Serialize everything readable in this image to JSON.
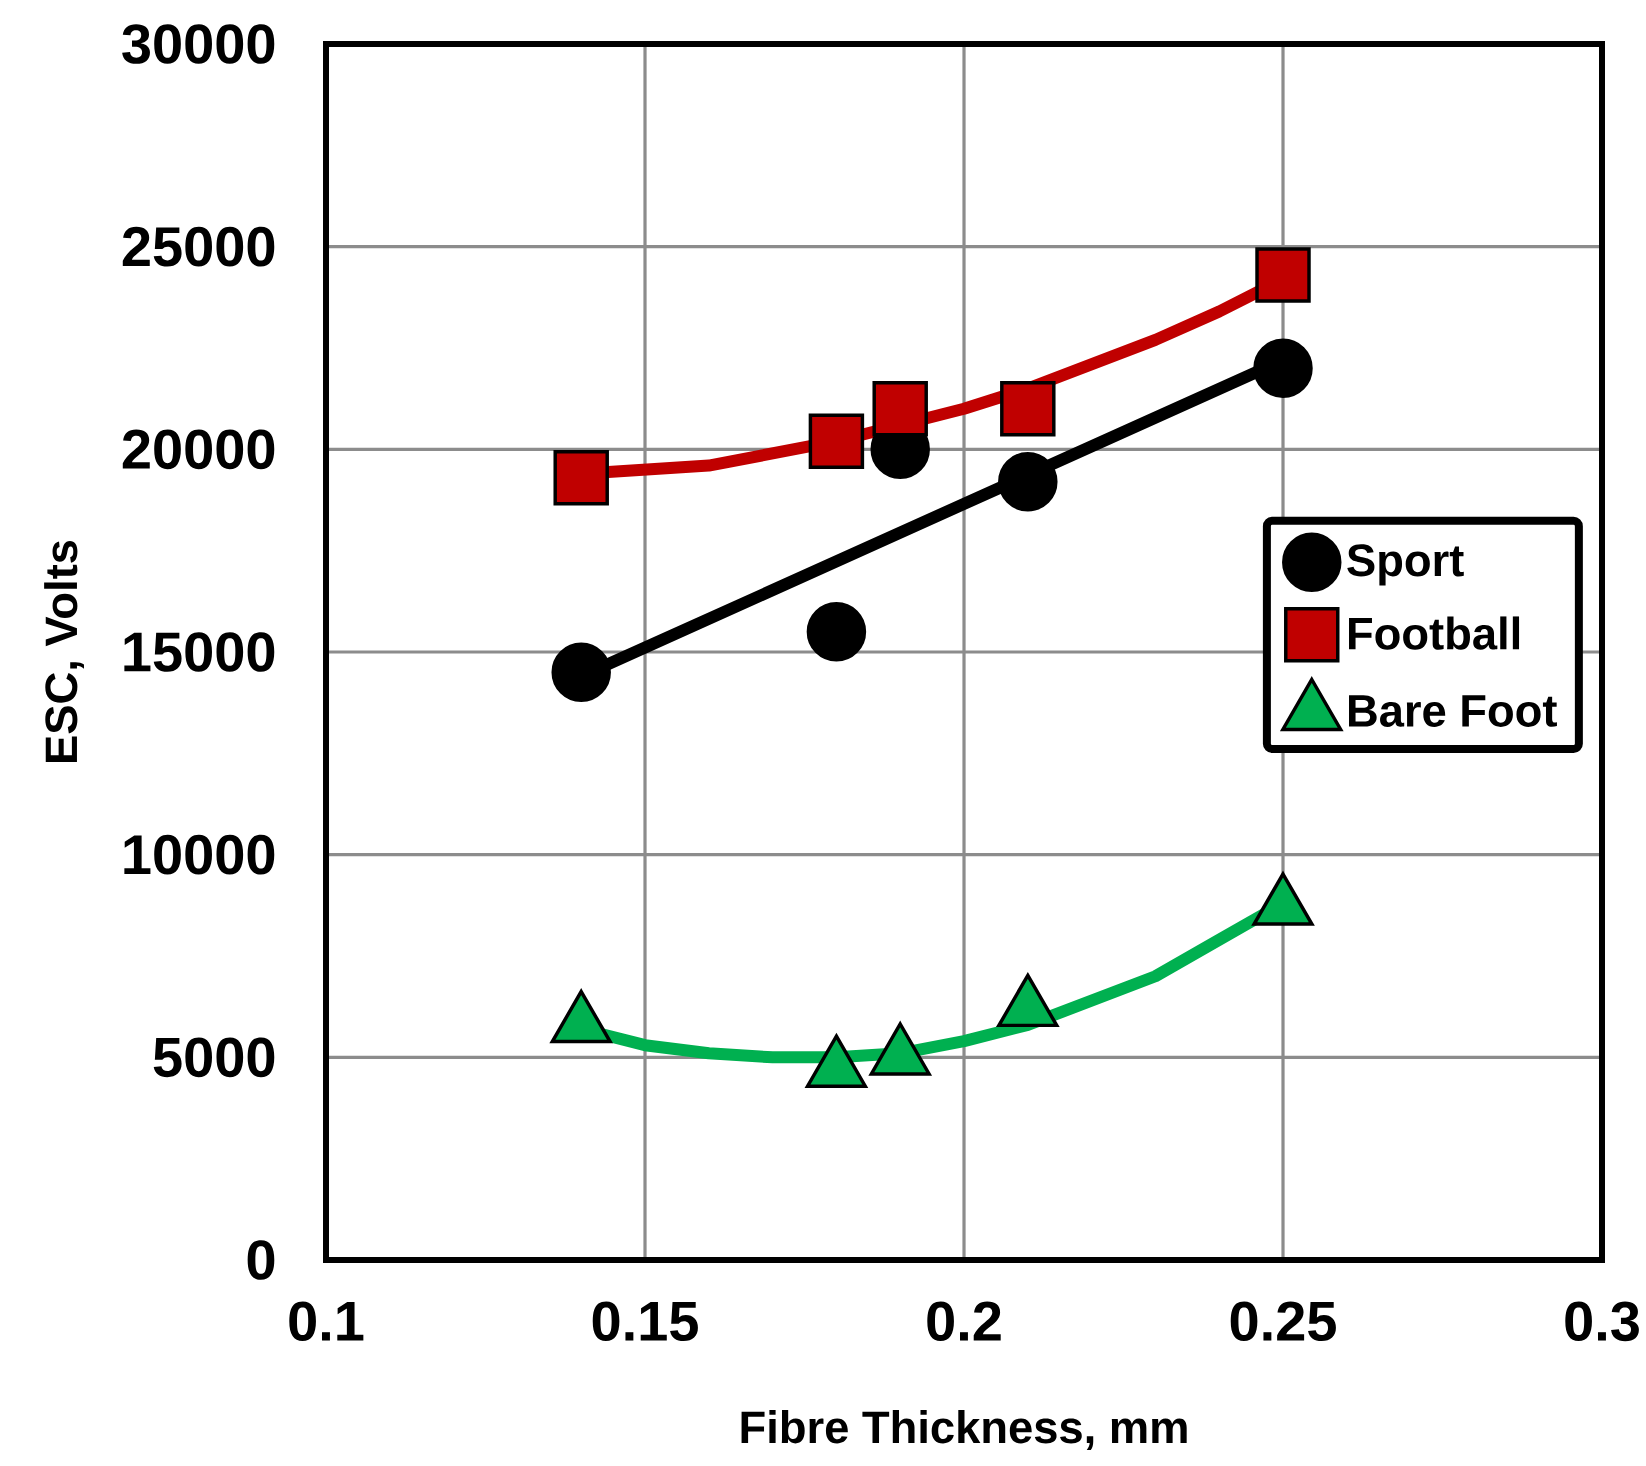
{
  "chart_data": {
    "type": "scatter",
    "xlabel": "Fibre Thickness, mm",
    "ylabel": "ESC, Volts",
    "xlim": [
      0.1,
      0.3
    ],
    "ylim": [
      0,
      30000
    ],
    "xticks": [
      0.1,
      0.15,
      0.2,
      0.25,
      0.3
    ],
    "yticks": [
      0,
      5000,
      10000,
      15000,
      20000,
      25000,
      30000
    ],
    "grid": true,
    "legend": "right",
    "series": [
      {
        "name": "Sport",
        "color": "#000000",
        "marker": "circle",
        "x": [
          0.14,
          0.18,
          0.19,
          0.21,
          0.25
        ],
        "values": [
          14500,
          15500,
          20000,
          19200,
          22000
        ]
      },
      {
        "name": "Football",
        "color": "#c00000",
        "marker": "square",
        "x": [
          0.14,
          0.18,
          0.19,
          0.21,
          0.25
        ],
        "values": [
          19300,
          20200,
          21000,
          21000,
          24300
        ]
      },
      {
        "name": "Bare Foot",
        "color": "#00b050",
        "marker": "triangle",
        "x": [
          0.14,
          0.18,
          0.19,
          0.21,
          0.25
        ],
        "values": [
          5800,
          4700,
          5000,
          6200,
          8700
        ]
      },
      {
        "type": "line",
        "color": "#000000",
        "x": [
          0.14,
          0.25
        ],
        "values": [
          14400,
          22200
        ]
      },
      {
        "type": "line",
        "color": "#c00000",
        "x": [
          0.14,
          0.15,
          0.16,
          0.17,
          0.18,
          0.19,
          0.2,
          0.21,
          0.22,
          0.23,
          0.24,
          0.25
        ],
        "values": [
          19400,
          19500,
          19600,
          19900,
          20200,
          20600,
          21000,
          21500,
          22100,
          22700,
          23400,
          24200
        ]
      },
      {
        "type": "line",
        "color": "#00b050",
        "x": [
          0.14,
          0.15,
          0.16,
          0.17,
          0.18,
          0.19,
          0.2,
          0.21,
          0.22,
          0.23,
          0.24,
          0.25
        ],
        "values": [
          5700,
          5300,
          5100,
          5000,
          5000,
          5100,
          5400,
          5800,
          6400,
          7000,
          7900,
          8800
        ]
      }
    ]
  }
}
